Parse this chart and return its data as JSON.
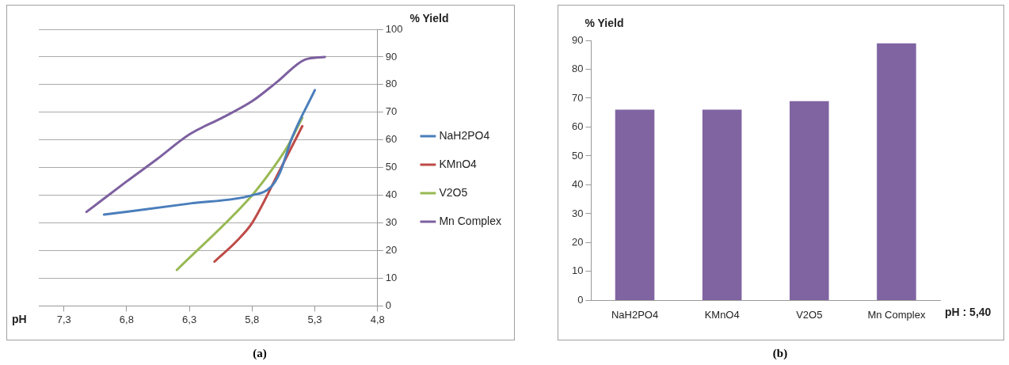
{
  "chart_data": [
    {
      "type": "line",
      "xlabel": "pH",
      "ylabel": "% Yield",
      "xlim": [
        7.5,
        4.8
      ],
      "ylim": [
        0,
        100
      ],
      "xticks": [
        {
          "value": 7.3,
          "label": "7,3"
        },
        {
          "value": 6.8,
          "label": "6,8"
        },
        {
          "value": 6.3,
          "label": "6,3"
        },
        {
          "value": 5.8,
          "label": "5,8"
        },
        {
          "value": 5.3,
          "label": "5,3"
        },
        {
          "value": 4.8,
          "label": "4,8"
        }
      ],
      "yticks": [
        0,
        10,
        20,
        30,
        40,
        50,
        60,
        70,
        80,
        90,
        100
      ],
      "grid": "y",
      "legend": "right",
      "annotations": [
        "(a)"
      ],
      "series": [
        {
          "name": "NaH2PO4",
          "color": "#4a7ebb",
          "x": [
            6.98,
            6.3,
            5.8,
            5.65,
            5.58,
            5.48,
            5.3
          ],
          "values": [
            33,
            37,
            40,
            43,
            48,
            61,
            78
          ]
        },
        {
          "name": "KMnO4",
          "color": "#be4b48",
          "x": [
            6.1,
            5.92,
            5.8,
            5.58,
            5.4
          ],
          "values": [
            16,
            23.6,
            30,
            49,
            65
          ]
        },
        {
          "name": "V2O5",
          "color": "#98b954",
          "x": [
            6.4,
            5.8,
            5.63,
            5.52,
            5.4
          ],
          "values": [
            13,
            40,
            50,
            57.5,
            68
          ]
        },
        {
          "name": "Mn Complex",
          "color": "#7d60a0",
          "x": [
            7.12,
            6.8,
            6.56,
            6.3,
            6.04,
            5.8,
            5.6,
            5.38,
            5.22
          ],
          "values": [
            34,
            45,
            53,
            62,
            68,
            74,
            81,
            89,
            90
          ]
        }
      ]
    },
    {
      "type": "bar",
      "xlabel": "pH : 5,40",
      "ylabel": "% Yield",
      "categories": [
        "NaH2PO4",
        "KMnO4",
        "V2O5",
        "Mn Complex"
      ],
      "values": [
        66,
        66,
        69,
        89
      ],
      "color": "#8064a2",
      "ylim": [
        0,
        90
      ],
      "yticks": [
        0,
        10,
        20,
        30,
        40,
        50,
        60,
        70,
        80,
        90
      ],
      "annotations": [
        "(b)"
      ]
    }
  ]
}
